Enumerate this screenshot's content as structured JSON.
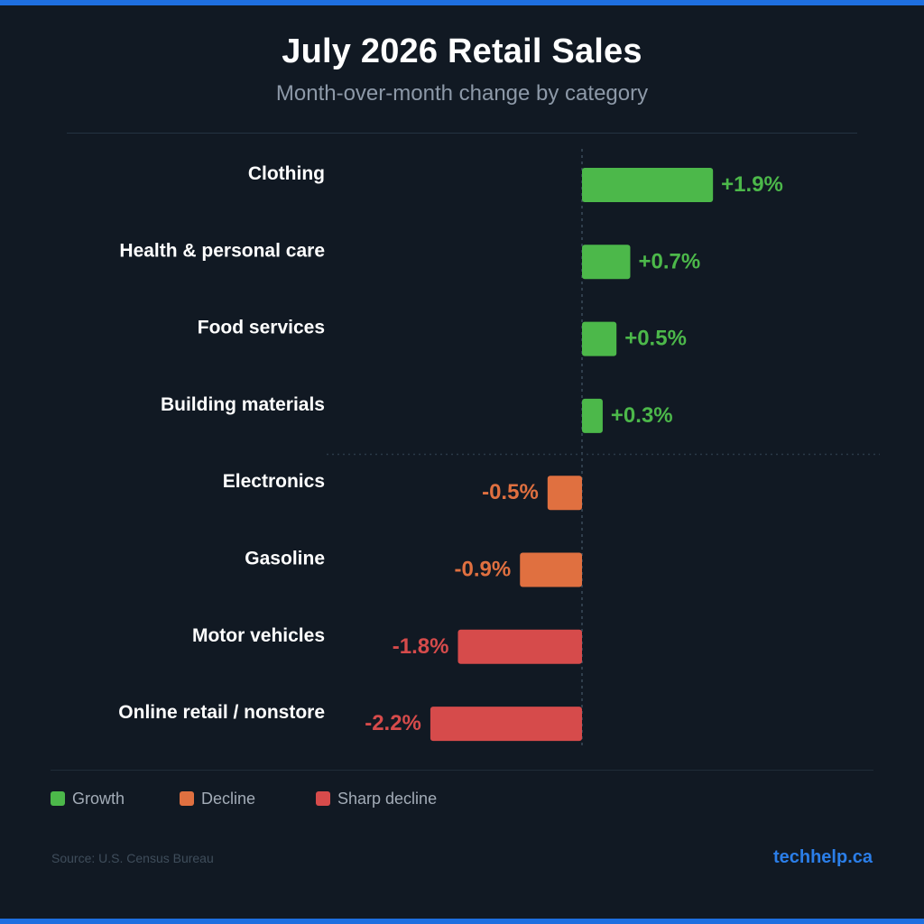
{
  "header": {
    "title": "July 2026 Retail Sales",
    "subtitle": "Month-over-month change by category"
  },
  "colors": {
    "growth": "#4cb84a",
    "decline": "#e07040",
    "sharp_decline": "#d64b4b",
    "background": "#111923",
    "accent": "#1e6fe0"
  },
  "chart_data": {
    "type": "bar",
    "orientation": "horizontal",
    "title": "July 2026 Retail Sales",
    "subtitle": "Month-over-month change by category",
    "unit": "%",
    "categories": [
      "Clothing",
      "Health & personal care",
      "Food services",
      "Building materials",
      "Electronics",
      "Gasoline",
      "Motor vehicles",
      "Online retail / nonstore"
    ],
    "values": [
      1.9,
      0.7,
      0.5,
      0.3,
      -0.5,
      -0.9,
      -1.8,
      -2.2
    ],
    "value_labels": [
      "+1.9%",
      "+0.7%",
      "+0.5%",
      "+0.3%",
      "-0.5%",
      "-0.9%",
      "-1.8%",
      "-2.2%"
    ],
    "value_class": [
      "growth",
      "growth",
      "growth",
      "growth",
      "decline",
      "decline",
      "sharp_decline",
      "sharp_decline"
    ],
    "xlim": [
      -2.2,
      1.9
    ],
    "grid": false,
    "legend_placement": "bottom-left"
  },
  "legend": {
    "items": [
      {
        "label": "Growth",
        "key": "growth"
      },
      {
        "label": "Decline",
        "key": "decline"
      },
      {
        "label": "Sharp decline",
        "key": "sharp_decline"
      }
    ]
  },
  "footer": {
    "source": "Source: U.S. Census Bureau",
    "brand": "techhelp.ca"
  }
}
